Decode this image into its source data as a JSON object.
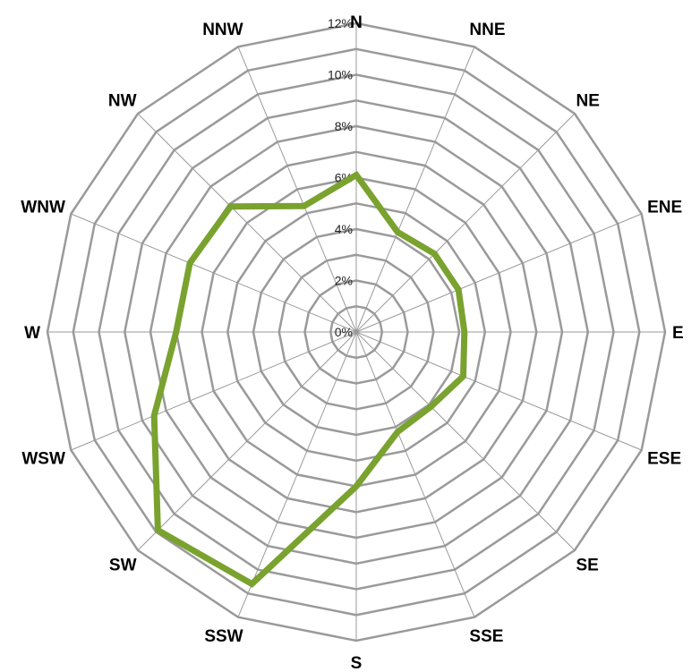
{
  "chart_data": {
    "type": "radar",
    "title": "",
    "categories": [
      "N",
      "NNE",
      "NE",
      "ENE",
      "E",
      "ESE",
      "SE",
      "SSE",
      "S",
      "SSW",
      "SW",
      "WSW",
      "W",
      "WNW",
      "NW",
      "NNW"
    ],
    "radial_ticks": [
      "0%",
      "2%",
      "4%",
      "6%",
      "8%",
      "10%",
      "12%"
    ],
    "rlim": [
      0,
      12
    ],
    "series": [
      {
        "color": "#7aa22f",
        "values": [
          6.1,
          4.2,
          4.3,
          4.3,
          4.2,
          4.5,
          4.1,
          4.2,
          6.0,
          10.6,
          10.9,
          8.5,
          7.0,
          7.0,
          6.9,
          5.3
        ]
      }
    ],
    "grid": true
  }
}
